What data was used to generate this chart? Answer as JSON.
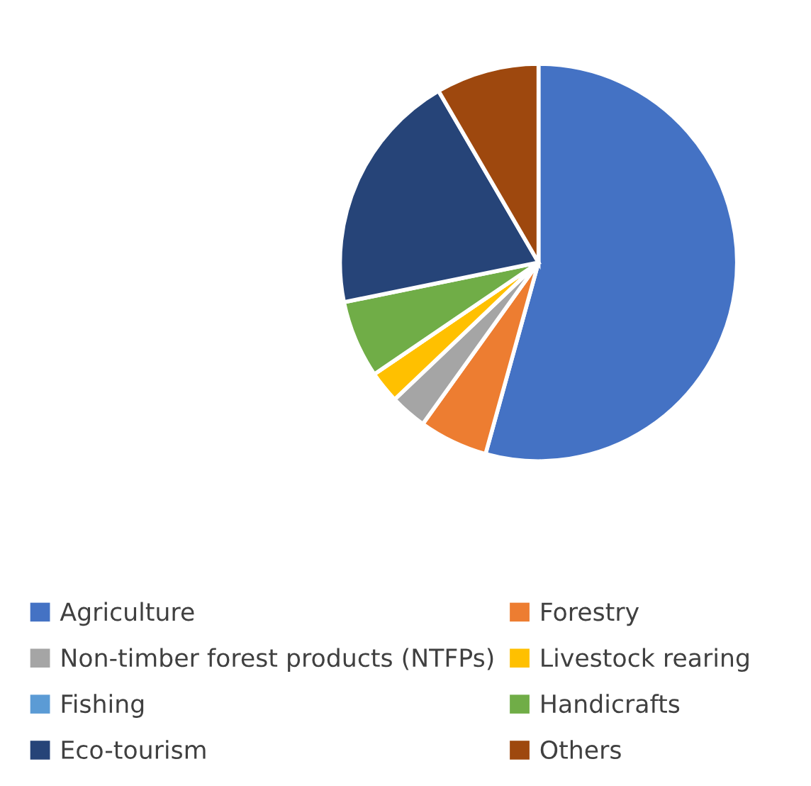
{
  "chart_data": {
    "type": "pie",
    "categories": [
      "Agriculture",
      "Forestry",
      "Non-timber forest products (NTFPs)",
      "Livestock rearing",
      "Fishing",
      "Handicrafts",
      "Eco-tourism",
      "Others"
    ],
    "values": [
      54.3,
      5.6,
      3.0,
      2.6,
      0,
      6.3,
      19.8,
      8.4
    ],
    "colors": [
      "#4472c4",
      "#ed7d31",
      "#a5a5a5",
      "#ffc000",
      "#5b9bd5",
      "#70ad47",
      "#264478",
      "#9e480e"
    ],
    "legend": "bottom"
  }
}
